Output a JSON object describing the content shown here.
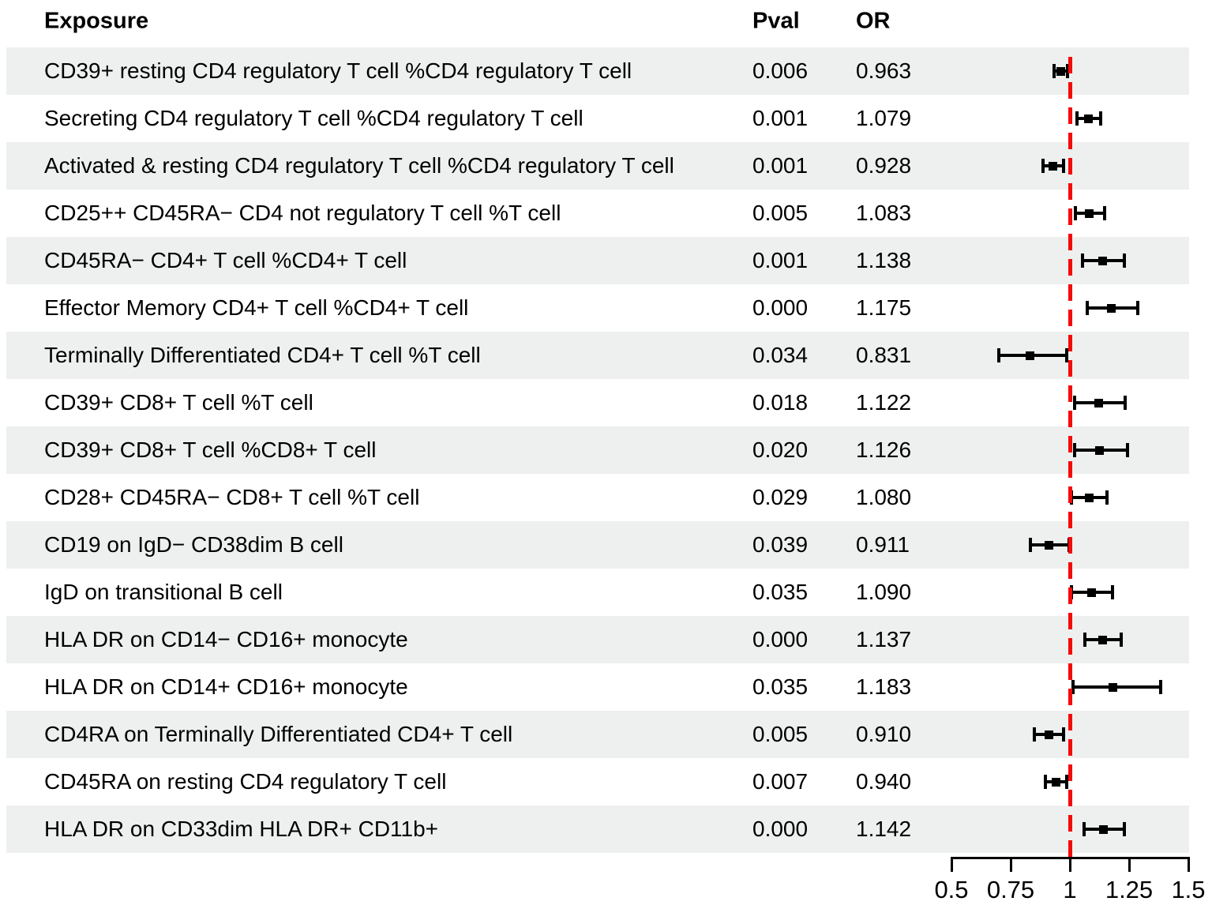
{
  "chart_data": {
    "type": "forest",
    "title": "",
    "columns": {
      "exposure": "Exposure",
      "pval": "Pval",
      "or": "OR"
    },
    "xaxis": {
      "min": 0.5,
      "max": 1.5,
      "ticks": [
        0.5,
        0.75,
        1,
        1.25,
        1.5
      ],
      "tick_labels": [
        "0.5",
        "0.75",
        "1",
        "1.25",
        "1.5"
      ],
      "reference_line": 1.0
    },
    "legend": null,
    "grid": false,
    "rows": [
      {
        "exposure": "CD39+ resting CD4 regulatory T cell %CD4 regulatory T cell",
        "pval": "0.006",
        "or": "0.963",
        "or_value": 0.963,
        "ci_low": 0.932,
        "ci_high": 0.991
      },
      {
        "exposure": "Secreting CD4 regulatory T cell %CD4 regulatory T cell",
        "pval": "0.001",
        "or": "1.079",
        "or_value": 1.079,
        "ci_low": 1.031,
        "ci_high": 1.129
      },
      {
        "exposure": "Activated & resting CD4 regulatory T cell %CD4 regulatory T cell",
        "pval": "0.001",
        "or": "0.928",
        "or_value": 0.928,
        "ci_low": 0.885,
        "ci_high": 0.972
      },
      {
        "exposure": "CD25++ CD45RA− CD4 not regulatory T cell %T cell",
        "pval": "0.005",
        "or": "1.083",
        "or_value": 1.083,
        "ci_low": 1.024,
        "ci_high": 1.145
      },
      {
        "exposure": "CD45RA− CD4+ T cell %CD4+ T cell",
        "pval": "0.001",
        "or": "1.138",
        "or_value": 1.138,
        "ci_low": 1.053,
        "ci_high": 1.23
      },
      {
        "exposure": "Effector Memory CD4+ T cell %CD4+ T cell",
        "pval": "0.000",
        "or": "1.175",
        "or_value": 1.175,
        "ci_low": 1.074,
        "ci_high": 1.285
      },
      {
        "exposure": "Terminally Differentiated CD4+ T cell %T cell",
        "pval": "0.034",
        "or": "0.831",
        "or_value": 0.831,
        "ci_low": 0.7,
        "ci_high": 0.986
      },
      {
        "exposure": "CD39+ CD8+ T cell %T cell",
        "pval": "0.018",
        "or": "1.122",
        "or_value": 1.122,
        "ci_low": 1.02,
        "ci_high": 1.234
      },
      {
        "exposure": "CD39+ CD8+ T cell %CD8+ T cell",
        "pval": "0.020",
        "or": "1.126",
        "or_value": 1.126,
        "ci_low": 1.019,
        "ci_high": 1.244
      },
      {
        "exposure": "CD28+ CD45RA− CD8+ T cell %T cell",
        "pval": "0.029",
        "or": "1.080",
        "or_value": 1.08,
        "ci_low": 1.008,
        "ci_high": 1.157
      },
      {
        "exposure": "CD19 on IgD− CD38dim B cell",
        "pval": "0.039",
        "or": "0.911",
        "or_value": 0.911,
        "ci_low": 0.833,
        "ci_high": 0.995
      },
      {
        "exposure": "IgD on transitional B cell",
        "pval": "0.035",
        "or": "1.090",
        "or_value": 1.09,
        "ci_low": 1.006,
        "ci_high": 1.181
      },
      {
        "exposure": "HLA DR on CD14− CD16+ monocyte",
        "pval": "0.000",
        "or": "1.137",
        "or_value": 1.137,
        "ci_low": 1.063,
        "ci_high": 1.216
      },
      {
        "exposure": "HLA DR on CD14+ CD16+ monocyte",
        "pval": "0.035",
        "or": "1.183",
        "or_value": 1.183,
        "ci_low": 1.012,
        "ci_high": 1.383
      },
      {
        "exposure": "CD4RA on Terminally Differentiated CD4+ T cell",
        "pval": "0.005",
        "or": "0.910",
        "or_value": 0.91,
        "ci_low": 0.851,
        "ci_high": 0.973
      },
      {
        "exposure": "CD45RA on resting CD4 regulatory T cell",
        "pval": "0.007",
        "or": "0.940",
        "or_value": 0.94,
        "ci_low": 0.896,
        "ci_high": 0.985
      },
      {
        "exposure": "HLA DR on CD33dim HLA DR+ CD11b+",
        "pval": "0.000",
        "or": "1.142",
        "or_value": 1.142,
        "ci_low": 1.06,
        "ci_high": 1.23
      }
    ]
  },
  "colors": {
    "stripe": "#edf0ee",
    "reference_line": "#f40b0b",
    "bar": "#000000",
    "text": "#000000",
    "background": "#ffffff"
  }
}
